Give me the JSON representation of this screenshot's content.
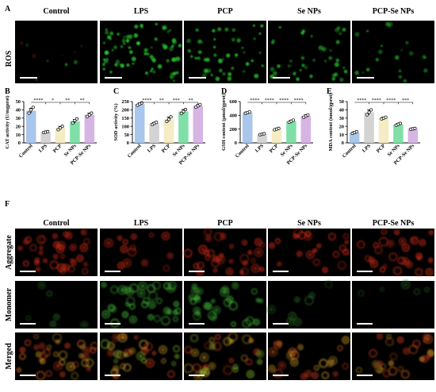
{
  "row_label_a": "ROS",
  "panel_letters": [
    "A",
    "B",
    "C",
    "D",
    "E",
    "F"
  ],
  "group_names": [
    "Control",
    "LPS",
    "PCP",
    "Se NPs",
    "PCP-Se NPs"
  ],
  "f_row_labels": [
    "Aggregate",
    "Monomer",
    "Merged"
  ],
  "colors": {
    "Control": "#a9c6ec",
    "LPS": "#d3d3d3",
    "PCP": "#f5ecc4",
    "Se NPs": "#7fdfa8",
    "PCP-Se NPs": "#d6b4e4"
  },
  "micrograph_colors": {
    "ROS": "#25c12a",
    "Aggregate": "#e8301c",
    "Monomer": "#45c23a",
    "Merged": "#dcb02a"
  },
  "chart_data": [
    {
      "type": "bar",
      "panel": "B",
      "categories": [
        "Control",
        "LPS",
        "PCP",
        "Se NPs",
        "PCP-Se NPs"
      ],
      "values": [
        39,
        13,
        18,
        26,
        34
      ],
      "points": [
        [
          36,
          40,
          43
        ],
        [
          12.5,
          13,
          13.5
        ],
        [
          16,
          18,
          20
        ],
        [
          24,
          27,
          29
        ],
        [
          32,
          34,
          36
        ]
      ],
      "errors": [
        3,
        0.6,
        2,
        2.3,
        2
      ],
      "ylabel": "CAT activity (U/mgprot)",
      "ylim": [
        0,
        50
      ],
      "yticks": [
        0,
        10,
        20,
        30,
        40,
        50
      ],
      "significance": [
        "****",
        "*",
        "**",
        "**"
      ]
    },
    {
      "type": "bar",
      "panel": "C",
      "categories": [
        "Control",
        "LPS",
        "PCP",
        "Se NPs",
        "PCP-Se NPs"
      ],
      "values": [
        235,
        118,
        143,
        190,
        224
      ],
      "points": [
        [
          228,
          235,
          242
        ],
        [
          112,
          118,
          124
        ],
        [
          130,
          142,
          157
        ],
        [
          178,
          190,
          202
        ],
        [
          216,
          224,
          232
        ]
      ],
      "errors": [
        7,
        6,
        13,
        12,
        8
      ],
      "ylabel": "SOD activity (%)",
      "ylim": [
        0,
        250
      ],
      "yticks": [
        0,
        50,
        100,
        150,
        200,
        250
      ],
      "significance": [
        "****",
        "**",
        "***",
        "**"
      ]
    },
    {
      "type": "bar",
      "panel": "D",
      "categories": [
        "Control",
        "LPS",
        "PCP",
        "Se NPs",
        "PCP-Se NPs"
      ],
      "values": [
        440,
        125,
        200,
        315,
        390
      ],
      "points": [
        [
          430,
          440,
          450
        ],
        [
          118,
          125,
          132
        ],
        [
          190,
          200,
          210
        ],
        [
          300,
          315,
          330
        ],
        [
          372,
          390,
          405
        ]
      ],
      "errors": [
        10,
        7,
        10,
        15,
        17
      ],
      "ylabel": "GSH content (μmol/gprot)",
      "ylim": [
        0,
        600
      ],
      "yticks": [
        0,
        200,
        400,
        600
      ],
      "significance": [
        "****",
        "****",
        "****",
        "****"
      ]
    },
    {
      "type": "bar",
      "panel": "E",
      "categories": [
        "Control",
        "LPS",
        "PCP",
        "Se NPs",
        "PCP-Se NPs"
      ],
      "values": [
        12.5,
        37,
        30,
        22.5,
        17
      ],
      "points": [
        [
          11.5,
          12.5,
          13.5
        ],
        [
          34,
          37,
          40
        ],
        [
          29,
          30,
          31
        ],
        [
          21.5,
          22.5,
          23.5
        ],
        [
          16.5,
          17,
          17.5
        ]
      ],
      "errors": [
        1,
        3,
        1.2,
        1,
        0.5
      ],
      "ylabel": "MDA content (nmol/gprot)",
      "ylim": [
        0,
        50
      ],
      "yticks": [
        0,
        10,
        20,
        30,
        40,
        50
      ],
      "significance": [
        "****",
        "****",
        "****",
        "***"
      ]
    }
  ]
}
